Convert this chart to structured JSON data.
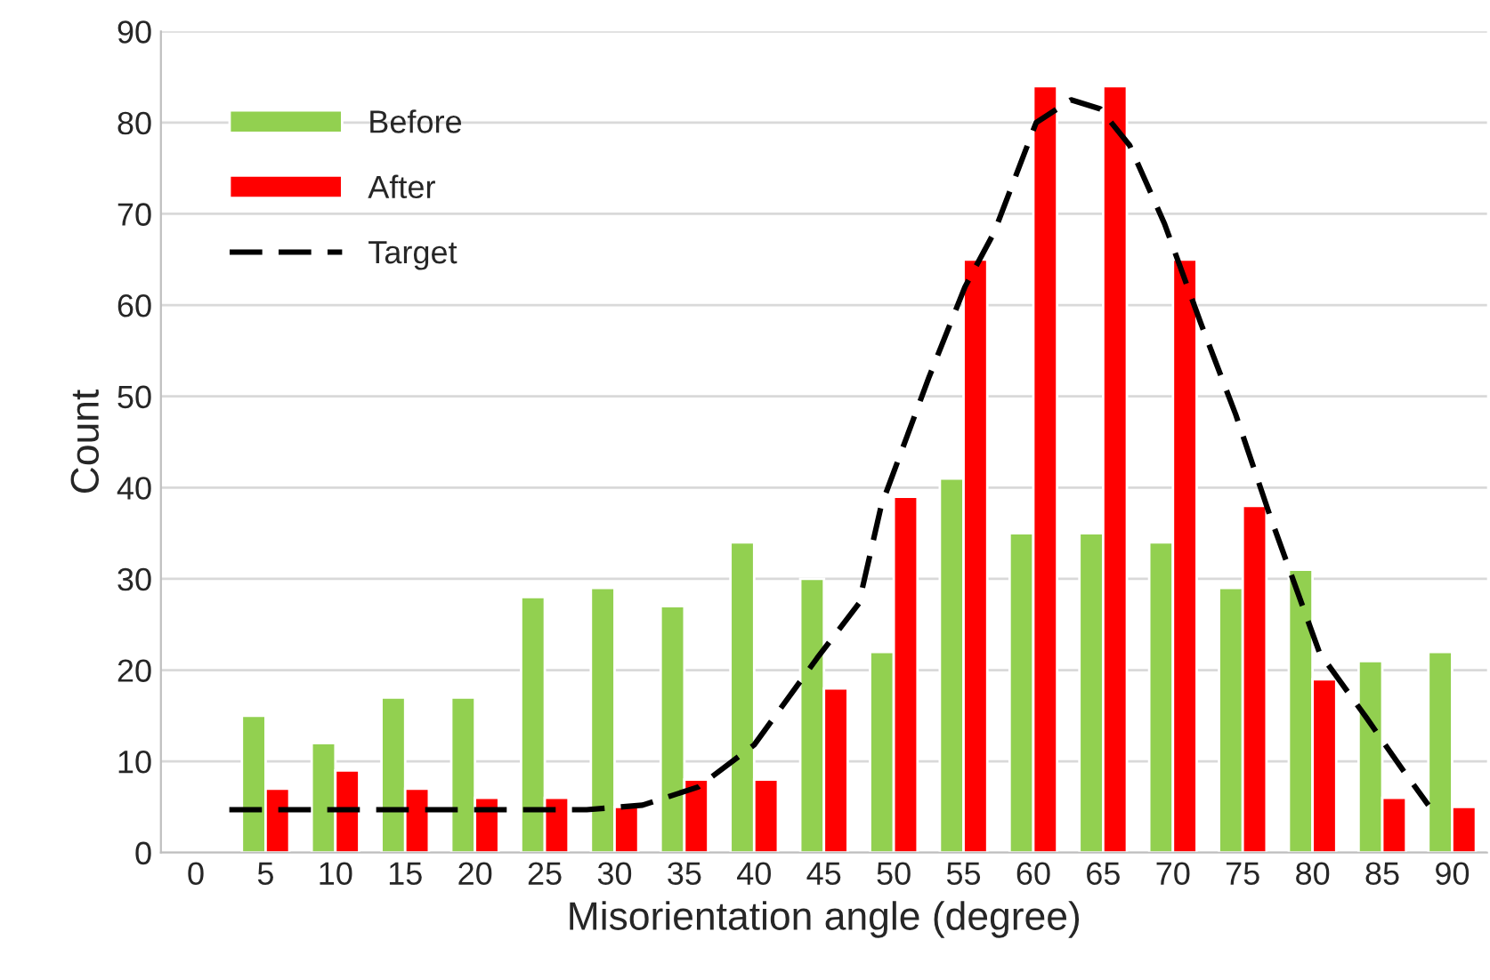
{
  "chart_data": {
    "type": "bar",
    "xlabel": "Misorientation angle (degree)",
    "ylabel": "Count",
    "x": [
      5,
      10,
      15,
      20,
      25,
      30,
      35,
      40,
      45,
      50,
      55,
      60,
      65,
      70,
      75,
      80,
      85,
      90
    ],
    "series": [
      {
        "name": "Before",
        "color": "#92d050",
        "values": [
          15,
          12,
          17,
          17,
          28,
          29,
          27,
          34,
          30,
          22,
          41,
          35,
          35,
          34,
          29,
          31,
          21,
          22
        ]
      },
      {
        "name": "After",
        "color": "#ff0000",
        "values": [
          7,
          9,
          7,
          6,
          6,
          5,
          8,
          8,
          18,
          39,
          65,
          84,
          84,
          65,
          38,
          19,
          6,
          5
        ]
      },
      {
        "name": "Target",
        "type": "line",
        "color": "#000000",
        "line_style": "dashed",
        "x": [
          2.4,
          10,
          20,
          28,
          32,
          36,
          40,
          44.5,
          47.5,
          49.1,
          52.5,
          55.1,
          57.2,
          60.2,
          62.7,
          64.8,
          66.9,
          69.4,
          72,
          74.5,
          77,
          80.5,
          83.9,
          86.4,
          88.3
        ],
        "values": [
          4.7,
          4.7,
          4.7,
          4.7,
          5.2,
          7.2,
          11.8,
          21.3,
          27.3,
          38,
          52,
          62,
          68,
          80,
          82.5,
          81.5,
          77.5,
          68.9,
          58,
          48,
          36.7,
          21.9,
          14.7,
          9.2,
          5.2
        ]
      }
    ],
    "xlim": [
      -2.5,
      92.5
    ],
    "xticks": [
      0,
      5,
      10,
      15,
      20,
      25,
      30,
      35,
      40,
      45,
      50,
      55,
      60,
      65,
      70,
      75,
      80,
      85,
      90
    ],
    "ylim": [
      0,
      90
    ],
    "yticks": [
      0,
      10,
      20,
      30,
      40,
      50,
      60,
      70,
      80,
      90
    ],
    "grid": "y",
    "legend": "top left"
  }
}
